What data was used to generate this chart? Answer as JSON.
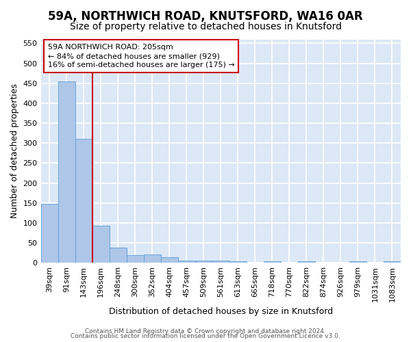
{
  "title": "59A, NORTHWICH ROAD, KNUTSFORD, WA16 0AR",
  "subtitle": "Size of property relative to detached houses in Knutsford",
  "xlabel": "Distribution of detached houses by size in Knutsford",
  "ylabel": "Number of detached properties",
  "bar_labels": [
    "39sqm",
    "91sqm",
    "143sqm",
    "196sqm",
    "248sqm",
    "300sqm",
    "352sqm",
    "404sqm",
    "457sqm",
    "509sqm",
    "561sqm",
    "613sqm",
    "665sqm",
    "718sqm",
    "770sqm",
    "822sqm",
    "874sqm",
    "926sqm",
    "979sqm",
    "1031sqm",
    "1083sqm"
  ],
  "bar_values": [
    148,
    454,
    311,
    93,
    38,
    20,
    22,
    14,
    6,
    6,
    6,
    4,
    0,
    4,
    0,
    4,
    0,
    0,
    4,
    0,
    4
  ],
  "bar_color": "#aec6e8",
  "bar_edge_color": "#5a9fd4",
  "annotation_line1": "59A NORTHWICH ROAD: 205sqm",
  "annotation_line2": "← 84% of detached houses are smaller (929)",
  "annotation_line3": "16% of semi-detached houses are larger (175) →",
  "annotation_box_facecolor": "#ffffff",
  "annotation_box_edgecolor": "#cc0000",
  "footer_line1": "Contains HM Land Registry data © Crown copyright and database right 2024.",
  "footer_line2": "Contains public sector information licensed under the Open Government Licence v3.0.",
  "ylim": [
    0,
    560
  ],
  "yticks": [
    0,
    50,
    100,
    150,
    200,
    250,
    300,
    350,
    400,
    450,
    500,
    550
  ],
  "fig_background_color": "#ffffff",
  "plot_background_color": "#dce8f5",
  "grid_color": "#ffffff",
  "red_line_index": 3,
  "red_line_color": "#cc0000",
  "title_fontsize": 12,
  "subtitle_fontsize": 10,
  "axis_label_fontsize": 9,
  "tick_fontsize": 8,
  "annotation_fontsize": 8,
  "footer_fontsize": 6.5
}
